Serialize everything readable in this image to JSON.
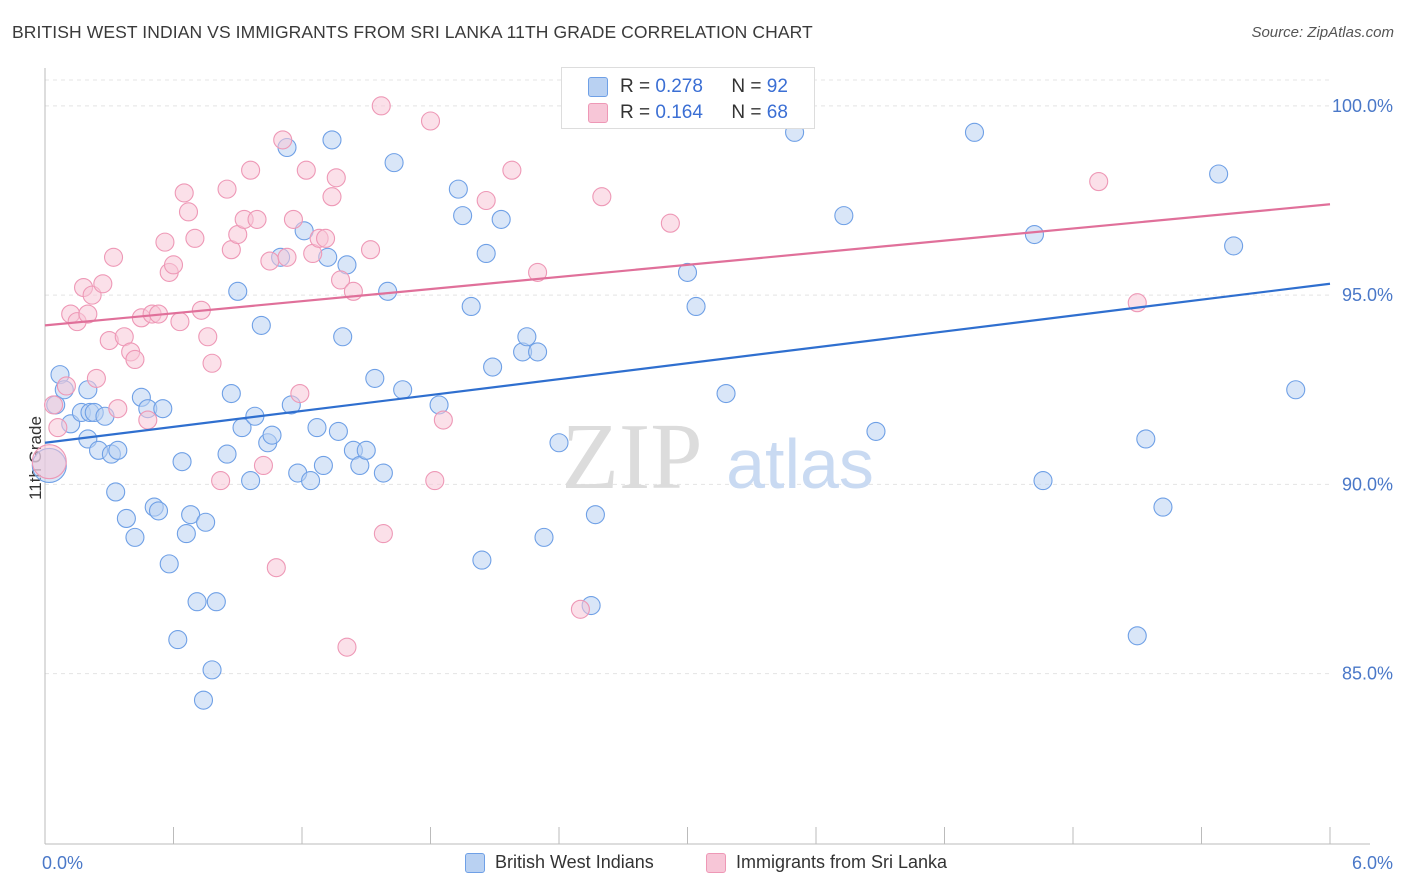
{
  "title": "BRITISH WEST INDIAN VS IMMIGRANTS FROM SRI LANKA 11TH GRADE CORRELATION CHART",
  "source": "Source: ZipAtlas.com",
  "watermark": {
    "zip": "ZIP",
    "atlas": "atlas"
  },
  "stats": [
    {
      "r_label": "R =",
      "r_value": "0.278",
      "n_label": "N =",
      "n_value": "92"
    },
    {
      "r_label": "R =",
      "r_value": "0.164",
      "n_label": "N =",
      "n_value": "68"
    }
  ],
  "legend": [
    "British West Indians",
    "Immigrants from Sri Lanka"
  ],
  "chart_data": {
    "type": "scatter",
    "title": "BRITISH WEST INDIAN VS IMMIGRANTS FROM SRI LANKA 11TH GRADE CORRELATION CHART",
    "xlabel": "",
    "ylabel": "11th Grade",
    "xlim": [
      0,
      6
    ],
    "ylim": [
      80.5,
      101
    ],
    "x_tick_labels": [
      "0.0%",
      "6.0%"
    ],
    "y_ticks": [
      85,
      90,
      95,
      100
    ],
    "y_tick_labels": [
      "85.0%",
      "90.0%",
      "95.0%",
      "100.0%"
    ],
    "grid": true,
    "legend_position": "bottom",
    "series": [
      {
        "name": "British West Indians",
        "color": "#6fa0e6",
        "fill": "#b9d1f2",
        "trend": {
          "x": [
            0,
            6
          ],
          "y": [
            91.1,
            95.3
          ],
          "color": "#2f6fcf"
        },
        "points": [
          [
            0.02,
            90.5
          ],
          [
            0.05,
            92.1
          ],
          [
            0.07,
            92.9
          ],
          [
            0.09,
            92.5
          ],
          [
            0.12,
            91.6
          ],
          [
            0.17,
            91.9
          ],
          [
            0.2,
            92.5
          ],
          [
            0.21,
            91.9
          ],
          [
            0.2,
            91.2
          ],
          [
            0.23,
            91.9
          ],
          [
            0.25,
            90.9
          ],
          [
            0.28,
            91.8
          ],
          [
            0.31,
            90.8
          ],
          [
            0.34,
            90.9
          ],
          [
            0.33,
            89.8
          ],
          [
            0.38,
            89.1
          ],
          [
            0.42,
            88.6
          ],
          [
            0.45,
            92.3
          ],
          [
            0.48,
            92.0
          ],
          [
            0.51,
            89.4
          ],
          [
            0.53,
            89.3
          ],
          [
            0.55,
            92.0
          ],
          [
            0.58,
            87.9
          ],
          [
            0.62,
            85.9
          ],
          [
            0.64,
            90.6
          ],
          [
            0.66,
            88.7
          ],
          [
            0.68,
            89.2
          ],
          [
            0.71,
            86.9
          ],
          [
            0.74,
            84.3
          ],
          [
            0.75,
            89.0
          ],
          [
            0.78,
            85.1
          ],
          [
            0.8,
            86.9
          ],
          [
            0.85,
            90.8
          ],
          [
            0.87,
            92.4
          ],
          [
            0.9,
            95.1
          ],
          [
            0.92,
            91.5
          ],
          [
            0.96,
            90.1
          ],
          [
            0.98,
            91.8
          ],
          [
            1.01,
            94.2
          ],
          [
            1.04,
            91.1
          ],
          [
            1.06,
            91.3
          ],
          [
            1.1,
            96.0
          ],
          [
            1.13,
            98.9
          ],
          [
            1.15,
            92.1
          ],
          [
            1.18,
            90.3
          ],
          [
            1.21,
            96.7
          ],
          [
            1.24,
            90.1
          ],
          [
            1.27,
            91.5
          ],
          [
            1.3,
            90.5
          ],
          [
            1.32,
            96.0
          ],
          [
            1.34,
            99.1
          ],
          [
            1.37,
            91.4
          ],
          [
            1.39,
            93.9
          ],
          [
            1.41,
            95.8
          ],
          [
            1.44,
            90.9
          ],
          [
            1.47,
            90.5
          ],
          [
            1.5,
            90.9
          ],
          [
            1.54,
            92.8
          ],
          [
            1.58,
            90.3
          ],
          [
            1.6,
            95.1
          ],
          [
            1.63,
            98.5
          ],
          [
            1.67,
            92.5
          ],
          [
            1.84,
            92.1
          ],
          [
            1.93,
            97.8
          ],
          [
            1.95,
            97.1
          ],
          [
            1.99,
            94.7
          ],
          [
            2.04,
            88.0
          ],
          [
            2.06,
            96.1
          ],
          [
            2.09,
            93.1
          ],
          [
            2.13,
            97.0
          ],
          [
            2.23,
            93.5
          ],
          [
            2.25,
            93.9
          ],
          [
            2.3,
            93.5
          ],
          [
            2.33,
            88.6
          ],
          [
            2.4,
            91.1
          ],
          [
            2.55,
            86.8
          ],
          [
            2.57,
            89.2
          ],
          [
            3.0,
            95.6
          ],
          [
            3.04,
            94.7
          ],
          [
            3.18,
            92.4
          ],
          [
            3.5,
            99.3
          ],
          [
            3.73,
            97.1
          ],
          [
            3.88,
            91.4
          ],
          [
            4.34,
            99.3
          ],
          [
            4.62,
            96.6
          ],
          [
            4.66,
            90.1
          ],
          [
            5.1,
            86.0
          ],
          [
            5.14,
            91.2
          ],
          [
            5.22,
            89.4
          ],
          [
            5.48,
            98.2
          ],
          [
            5.55,
            96.3
          ],
          [
            5.84,
            92.5
          ]
        ]
      },
      {
        "name": "Immigrants from Sri Lanka",
        "color": "#ee98b6",
        "fill": "#f7c6d7",
        "trend": {
          "x": [
            0,
            6
          ],
          "y": [
            94.2,
            97.4
          ],
          "color": "#e0709a"
        },
        "points": [
          [
            0.02,
            90.6
          ],
          [
            0.04,
            92.1
          ],
          [
            0.06,
            91.5
          ],
          [
            0.1,
            92.6
          ],
          [
            0.12,
            94.5
          ],
          [
            0.15,
            94.3
          ],
          [
            0.18,
            95.2
          ],
          [
            0.2,
            94.5
          ],
          [
            0.22,
            95.0
          ],
          [
            0.24,
            92.8
          ],
          [
            0.27,
            95.3
          ],
          [
            0.3,
            93.8
          ],
          [
            0.32,
            96.0
          ],
          [
            0.34,
            92.0
          ],
          [
            0.37,
            93.9
          ],
          [
            0.4,
            93.5
          ],
          [
            0.42,
            93.3
          ],
          [
            0.45,
            94.4
          ],
          [
            0.48,
            91.7
          ],
          [
            0.5,
            94.5
          ],
          [
            0.53,
            94.5
          ],
          [
            0.56,
            96.4
          ],
          [
            0.58,
            95.6
          ],
          [
            0.6,
            95.8
          ],
          [
            0.63,
            94.3
          ],
          [
            0.65,
            97.7
          ],
          [
            0.67,
            97.2
          ],
          [
            0.7,
            96.5
          ],
          [
            0.73,
            94.6
          ],
          [
            0.76,
            93.9
          ],
          [
            0.78,
            93.2
          ],
          [
            0.82,
            90.1
          ],
          [
            0.85,
            97.8
          ],
          [
            0.87,
            96.2
          ],
          [
            0.9,
            96.6
          ],
          [
            0.93,
            97.0
          ],
          [
            0.96,
            98.3
          ],
          [
            0.99,
            97.0
          ],
          [
            1.02,
            90.5
          ],
          [
            1.05,
            95.9
          ],
          [
            1.08,
            87.8
          ],
          [
            1.11,
            99.1
          ],
          [
            1.13,
            96.0
          ],
          [
            1.16,
            97.0
          ],
          [
            1.19,
            92.4
          ],
          [
            1.22,
            98.3
          ],
          [
            1.25,
            96.1
          ],
          [
            1.28,
            96.5
          ],
          [
            1.31,
            96.5
          ],
          [
            1.34,
            97.6
          ],
          [
            1.36,
            98.1
          ],
          [
            1.38,
            95.4
          ],
          [
            1.41,
            85.7
          ],
          [
            1.44,
            95.1
          ],
          [
            1.52,
            96.2
          ],
          [
            1.57,
            100.0
          ],
          [
            1.58,
            88.7
          ],
          [
            1.8,
            99.6
          ],
          [
            1.82,
            90.1
          ],
          [
            1.86,
            91.7
          ],
          [
            2.06,
            97.5
          ],
          [
            2.18,
            98.3
          ],
          [
            2.3,
            95.6
          ],
          [
            2.5,
            86.7
          ],
          [
            2.6,
            97.6
          ],
          [
            2.92,
            96.9
          ],
          [
            4.92,
            98.0
          ],
          [
            5.1,
            94.8
          ]
        ]
      }
    ]
  }
}
